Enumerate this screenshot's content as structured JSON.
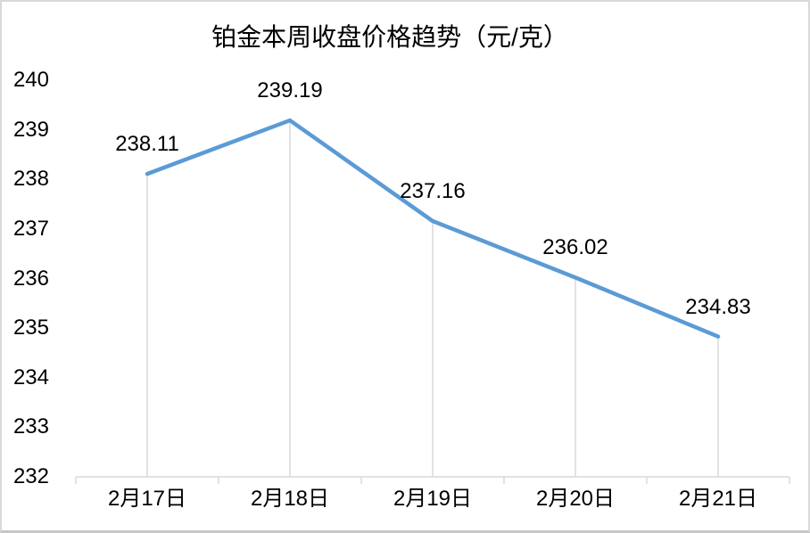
{
  "chart_data": {
    "type": "line",
    "title": "铂金本周收盘价格趋势（元/克）",
    "categories": [
      "2月17日",
      "2月18日",
      "2月19日",
      "2月20日",
      "2月21日"
    ],
    "values": [
      238.11,
      239.19,
      237.16,
      236.02,
      234.83
    ],
    "data_labels": [
      "238.11",
      "239.19",
      "237.16",
      "236.02",
      "234.83"
    ],
    "xlabel": "",
    "ylabel": "",
    "ylim": [
      232,
      240
    ],
    "y_ticks": [
      240,
      239,
      238,
      237,
      236,
      235,
      234,
      233,
      232
    ],
    "grid": false,
    "drop_lines": true,
    "legend": "none",
    "colors": {
      "line": "#5B9BD5",
      "axis": "#D9D9D9",
      "drop_line": "#D9D9D9",
      "text": "#000000",
      "frame_border": "#D9D9D9"
    }
  }
}
